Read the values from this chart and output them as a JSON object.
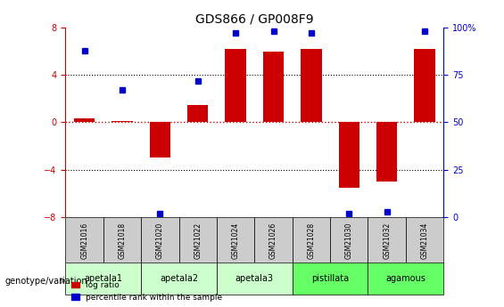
{
  "title": "GDS866 / GP008F9",
  "samples": [
    "GSM21016",
    "GSM21018",
    "GSM21020",
    "GSM21022",
    "GSM21024",
    "GSM21026",
    "GSM21028",
    "GSM21030",
    "GSM21032",
    "GSM21034"
  ],
  "log_ratios": [
    0.3,
    0.1,
    -3.0,
    1.5,
    6.2,
    6.0,
    6.2,
    -5.5,
    -5.0,
    6.2
  ],
  "percentile_ranks": [
    88,
    67,
    2,
    72,
    97,
    98,
    97,
    2,
    3,
    98
  ],
  "groups": [
    {
      "label": "apetala1",
      "samples": [
        0,
        1
      ],
      "color": "#ccffcc"
    },
    {
      "label": "apetala2",
      "samples": [
        2,
        3
      ],
      "color": "#ccffcc"
    },
    {
      "label": "apetala3",
      "samples": [
        4,
        5
      ],
      "color": "#ccffcc"
    },
    {
      "label": "pistillata",
      "samples": [
        6,
        7
      ],
      "color": "#66ff66"
    },
    {
      "label": "agamous",
      "samples": [
        8,
        9
      ],
      "color": "#66ff66"
    }
  ],
  "ylim": [
    -8,
    8
  ],
  "y2lim": [
    0,
    100
  ],
  "bar_color": "#cc0000",
  "dot_color": "#0000cc",
  "hline_color": "#cc0000",
  "grid_color": "#000000",
  "bg_plot": "#ffffff",
  "bg_sample": "#cccccc"
}
